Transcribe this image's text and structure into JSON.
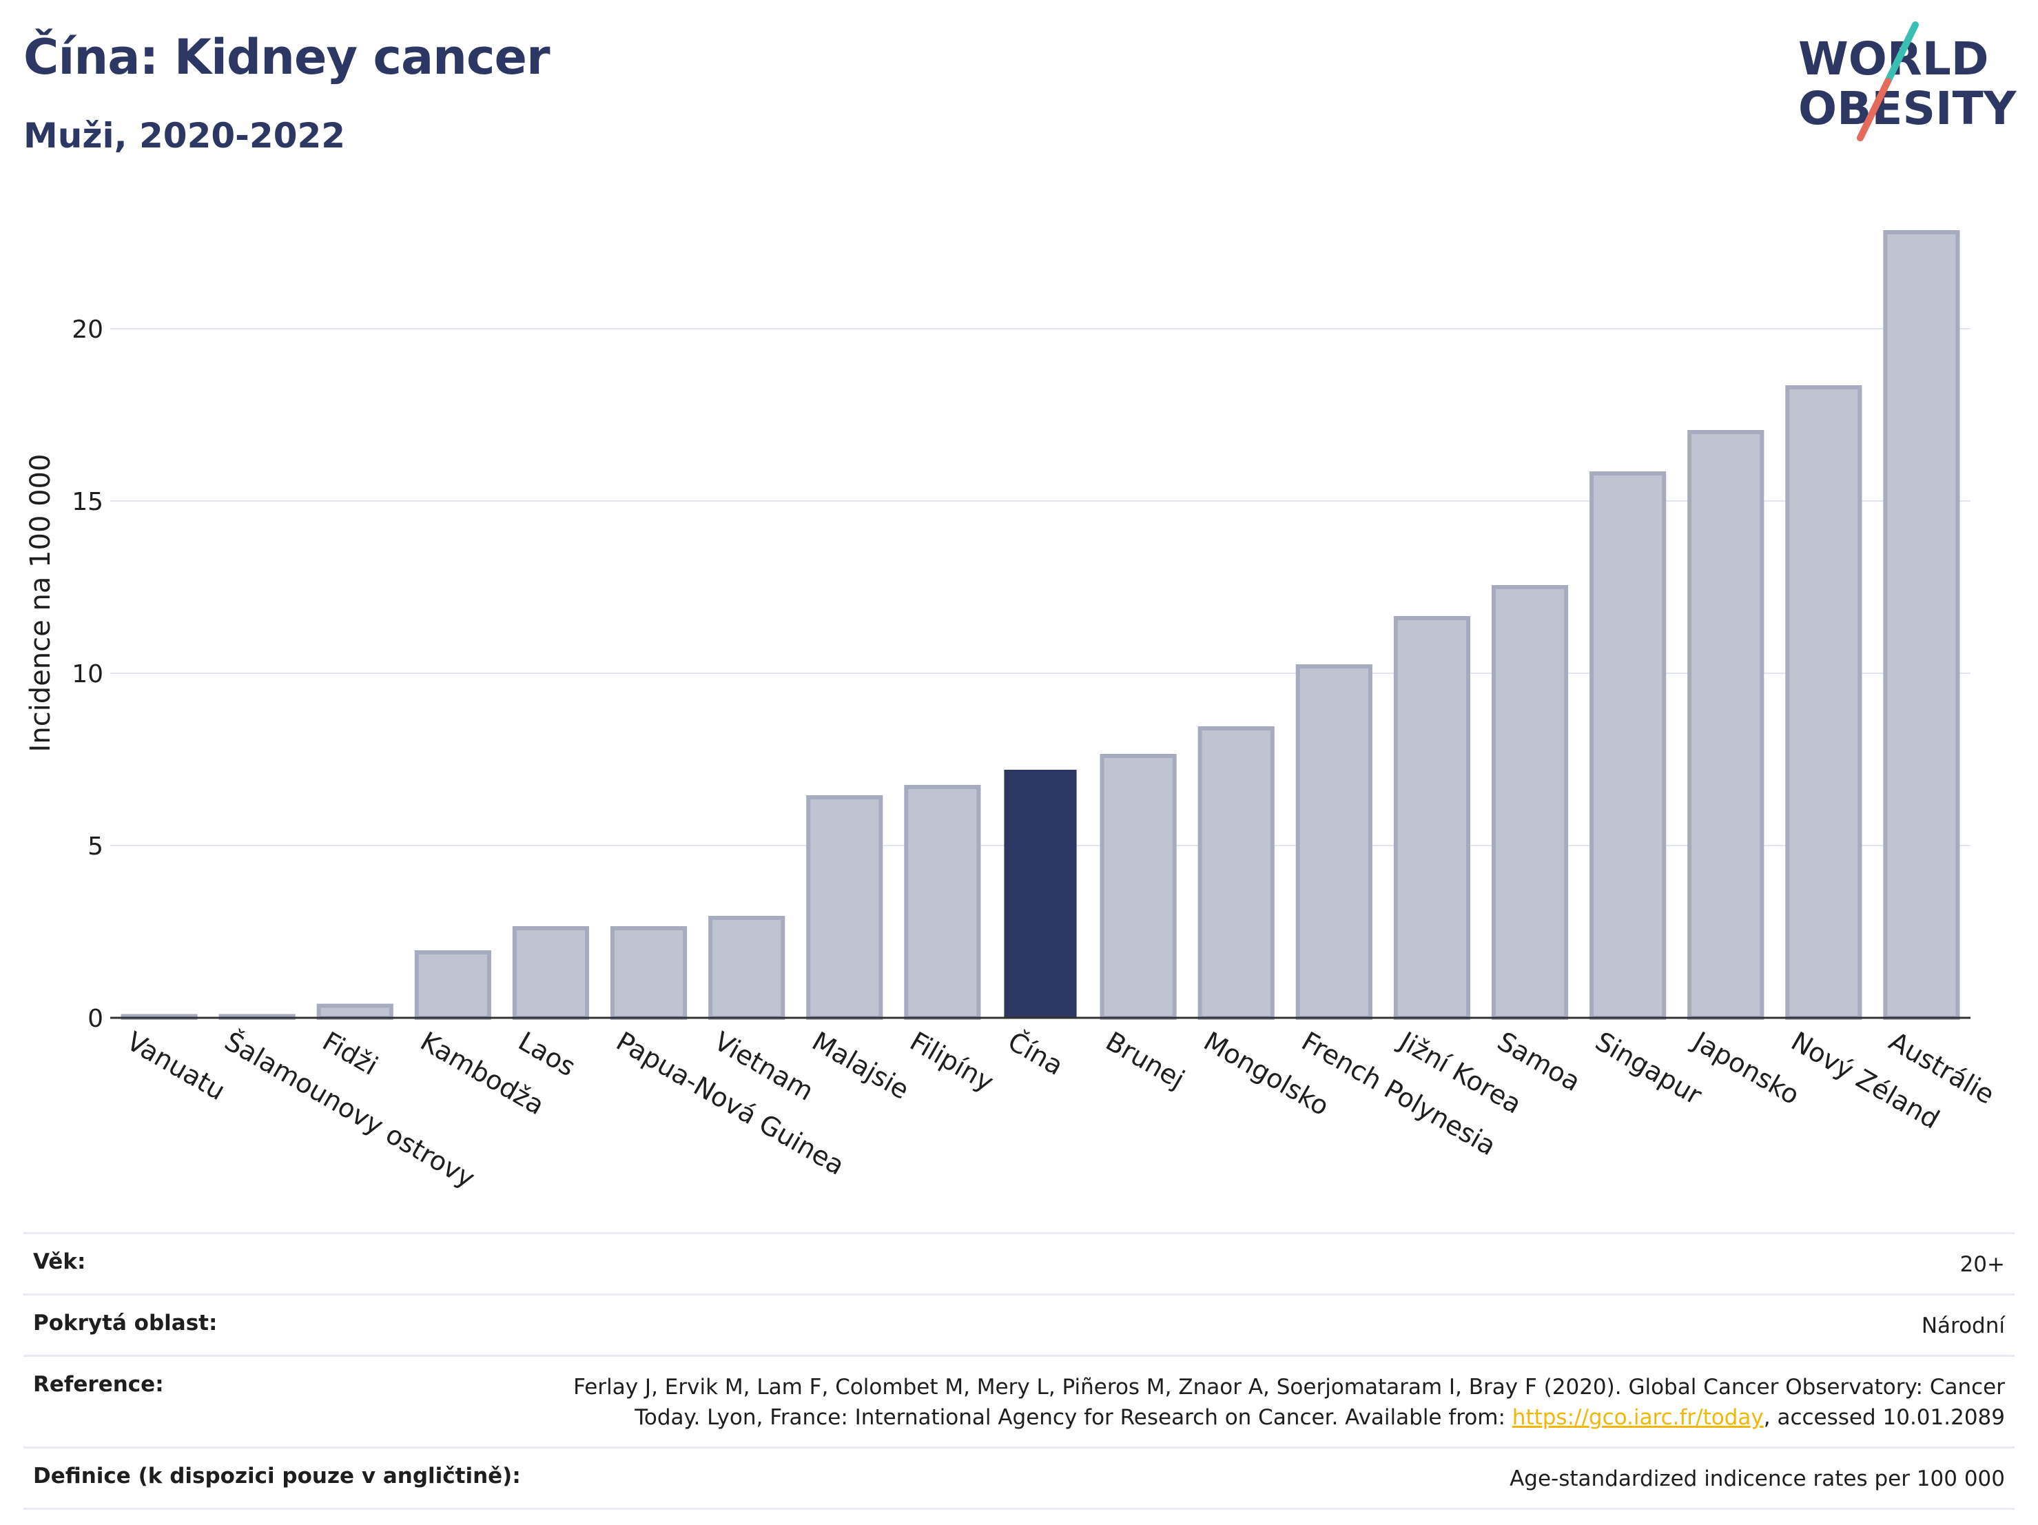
{
  "header": {
    "title": "Čína: Kidney cancer",
    "subtitle": "Muži, 2020-2022"
  },
  "logo": {
    "line1": "WORLD",
    "line2": "OBESITY"
  },
  "chart_data": {
    "type": "bar",
    "title": "Čína: Kidney cancer",
    "subtitle": "Muži, 2020-2022",
    "xlabel": "",
    "ylabel": "Incidence na 100 000",
    "ylim": [
      0,
      24
    ],
    "yticks": [
      0,
      5,
      10,
      15,
      20
    ],
    "grid": true,
    "categories": [
      "Vanuatu",
      "Šalamounovy ostrovy",
      "Fidži",
      "Kambodža",
      "Laos",
      "Papua-Nová Guinea",
      "Vietnam",
      "Malajsie",
      "Filipíny",
      "Čína",
      "Brunej",
      "Mongolsko",
      "French Polynesia",
      "Jižní Korea",
      "Samoa",
      "Singapur",
      "Japonsko",
      "Nový Zéland",
      "Austrálie"
    ],
    "values": [
      0.05,
      0.05,
      0.35,
      1.9,
      2.6,
      2.6,
      2.9,
      6.4,
      6.7,
      7.2,
      7.6,
      8.4,
      10.2,
      11.6,
      12.5,
      15.8,
      17.0,
      18.3,
      22.8
    ],
    "highlight": "Čína",
    "colors": {
      "default": "#c0c4d2",
      "default_border": "#a6abbf",
      "highlight": "#2c3763",
      "axis": "#333333",
      "grid": "#e3e6ee"
    }
  },
  "info": {
    "rows": [
      {
        "label": "Věk:",
        "value": "20+"
      },
      {
        "label": "Pokrytá oblast:",
        "value": "Národní"
      },
      {
        "label": "Reference:",
        "value_part1": "Ferlay J, Ervik M, Lam F, Colombet M, Mery L, Piñeros M, Znaor A, Soerjomataram I, Bray F (2020). Global Cancer Observatory: Cancer Today. Lyon, France: International Agency for Research on Cancer. Available from: ",
        "link": "https://gco.iarc.fr/today",
        "value_part2": ", accessed 10.01.2089"
      },
      {
        "label": "Definice (k dispozici pouze v angličtině):",
        "value": "Age-standardized indicence rates per 100 000"
      }
    ]
  }
}
